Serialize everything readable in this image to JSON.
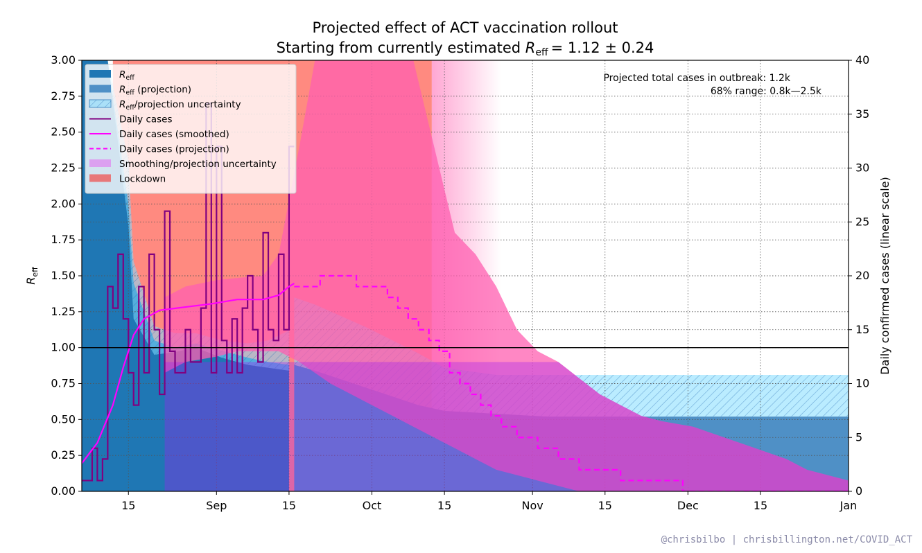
{
  "chart_data": {
    "type": "area",
    "title_line1": "Projected effect of ACT vaccination rollout",
    "title_line2_prefix": "Starting from currently estimated ",
    "title_line2_math": "= 1.12 ± 0.24",
    "ylabel_left_main": "R",
    "ylabel_left_sub": "eff",
    "ylabel_right": "Daily confirmed cases (linear scale)",
    "ylim_left": [
      0,
      3
    ],
    "ylim_right": [
      0,
      40
    ],
    "x_axis": {
      "start_date": "2021-08-06",
      "end_date": "2022-01-01",
      "tick_labels": [
        "15",
        "Sep",
        "15",
        "Oct",
        "15",
        "Nov",
        "15",
        "Dec",
        "15",
        "Jan"
      ],
      "tick_dates": [
        "2021-08-15",
        "2021-09-01",
        "2021-09-15",
        "2021-10-01",
        "2021-10-15",
        "2021-11-01",
        "2021-11-15",
        "2021-12-01",
        "2021-12-15",
        "2022-01-01"
      ]
    },
    "y_left_ticks": [
      "0.00",
      "0.25",
      "0.50",
      "0.75",
      "1.00",
      "1.25",
      "1.50",
      "1.75",
      "2.00",
      "2.25",
      "2.50",
      "2.75",
      "3.00"
    ],
    "y_right_ticks": [
      "0",
      "5",
      "10",
      "15",
      "20",
      "25",
      "30",
      "35",
      "40"
    ],
    "grid": true,
    "reference_line_R": 1.0,
    "legend_position": "top-left",
    "legend": [
      {
        "label": "R",
        "sub": "eff",
        "suffix": "",
        "kind": "patch-dark"
      },
      {
        "label": "R",
        "sub": "eff",
        "suffix": " (projection)",
        "kind": "patch-mid"
      },
      {
        "label": "R",
        "sub": "eff",
        "suffix": "/projection uncertainty",
        "kind": "patch-hatch"
      },
      {
        "label": "Daily cases",
        "sub": "",
        "suffix": "",
        "kind": "line-purple"
      },
      {
        "label": "Daily cases (smoothed)",
        "sub": "",
        "suffix": "",
        "kind": "line-magenta"
      },
      {
        "label": "Daily cases (projection)",
        "sub": "",
        "suffix": "",
        "kind": "line-dashed"
      },
      {
        "label": "Smoothing/projection uncertainty",
        "sub": "",
        "suffix": "",
        "kind": "patch-violet"
      },
      {
        "label": "Lockdown",
        "sub": "",
        "suffix": "",
        "kind": "patch-red"
      }
    ],
    "annotation_line1": "Projected total cases in outbreak:  1.2k",
    "annotation_line2": "68% range:  0.8k—2.5k",
    "lockdown_start": "2021-08-12",
    "projection_start": "2021-09-16",
    "colors": {
      "reff": "#1f77b4",
      "reff_projection": "#4f90c6",
      "uncertainty": "#82dcff",
      "daily_cases": "#800080",
      "smoothed": "#ff00ff",
      "violet_band": "#a020f0",
      "lockdown": "#ff8a80",
      "pink": "#ff5fb0"
    },
    "reff_estimate": {
      "days": [
        0,
        5,
        9,
        10,
        14,
        18,
        22,
        27,
        32,
        36,
        40
      ],
      "center": [
        3.0,
        3.0,
        2.0,
        1.45,
        1.05,
        1.0,
        1.03,
        0.98,
        0.93,
        0.9,
        0.88
      ],
      "low": [
        3.0,
        3.0,
        1.85,
        1.2,
        0.95,
        0.97,
        1.0,
        0.93,
        0.88,
        0.86,
        0.84
      ],
      "high": [
        3.0,
        3.0,
        2.3,
        1.6,
        1.15,
        1.1,
        1.1,
        1.05,
        1.03,
        1.05,
        1.12
      ]
    },
    "reff_projection": {
      "days": [
        41,
        45,
        50,
        55,
        60,
        65,
        70,
        80,
        90,
        110,
        148
      ],
      "center": [
        0.88,
        0.84,
        0.78,
        0.72,
        0.66,
        0.6,
        0.56,
        0.54,
        0.52,
        0.52,
        0.52
      ],
      "low": [
        1.1,
        1.05,
        0.95,
        0.88,
        0.8,
        0.74,
        0.7,
        0.67,
        0.67,
        0.67,
        0.67
      ],
      "high": [
        1.35,
        1.3,
        1.22,
        1.14,
        1.05,
        0.96,
        0.86,
        0.81,
        0.81,
        0.81,
        0.81
      ]
    },
    "daily_cases": [
      1,
      1,
      4,
      1,
      3,
      19,
      17,
      22,
      16,
      11,
      8,
      19,
      11,
      22,
      15,
      9,
      26,
      13,
      11,
      11,
      15,
      12,
      12,
      17,
      36,
      11,
      32,
      14,
      11,
      16,
      11,
      17,
      20,
      15,
      12,
      24,
      15,
      14,
      22,
      15,
      32
    ],
    "smoothed_cases": [
      [
        0,
        2.6
      ],
      [
        3,
        4.5
      ],
      [
        6,
        8.0
      ],
      [
        8,
        11.5
      ],
      [
        10,
        14.5
      ],
      [
        12,
        16.0
      ],
      [
        15,
        16.8
      ],
      [
        20,
        17.1
      ],
      [
        25,
        17.4
      ],
      [
        30,
        17.8
      ],
      [
        35,
        17.8
      ],
      [
        38,
        18.2
      ],
      [
        40,
        19.0
      ],
      [
        41,
        19.3
      ]
    ],
    "projected_cases": [
      19,
      19,
      20,
      20,
      19,
      19,
      18,
      17,
      16,
      15,
      14,
      13,
      11,
      10,
      9,
      8,
      7,
      6,
      5,
      4,
      3,
      2,
      2,
      1,
      1,
      0
    ],
    "projected_case_steps_days": [
      41,
      43,
      46,
      50,
      53,
      56,
      59,
      61,
      63,
      65,
      67,
      69,
      71,
      73,
      75,
      77,
      79,
      81,
      84,
      88,
      92,
      96,
      100,
      104,
      110,
      116
    ],
    "case_band": {
      "days": [
        16,
        20,
        26,
        30,
        35,
        38,
        42,
        45,
        48,
        52,
        56,
        60,
        64,
        68,
        72,
        76,
        80,
        84,
        88,
        92,
        96,
        100,
        104,
        108,
        112,
        118,
        124,
        130,
        136,
        140,
        148
      ],
      "low": [
        11,
        12,
        12.5,
        13,
        13,
        13,
        12,
        11,
        10,
        9,
        8,
        7,
        6,
        5,
        4,
        3,
        2,
        1.5,
        1,
        0.5,
        0,
        0,
        0,
        0,
        0,
        0,
        0,
        0,
        0,
        0,
        0
      ],
      "high": [
        18,
        19,
        19.6,
        19.8,
        20,
        22,
        32,
        40,
        42,
        42,
        42,
        42,
        40,
        32,
        24,
        22,
        19,
        15,
        13,
        12,
        10.5,
        9,
        8,
        7,
        6.5,
        6,
        5,
        4,
        3,
        2,
        1
      ]
    }
  },
  "footer": "@chrisbilbo | chrisbillington.net/COVID_ACT"
}
